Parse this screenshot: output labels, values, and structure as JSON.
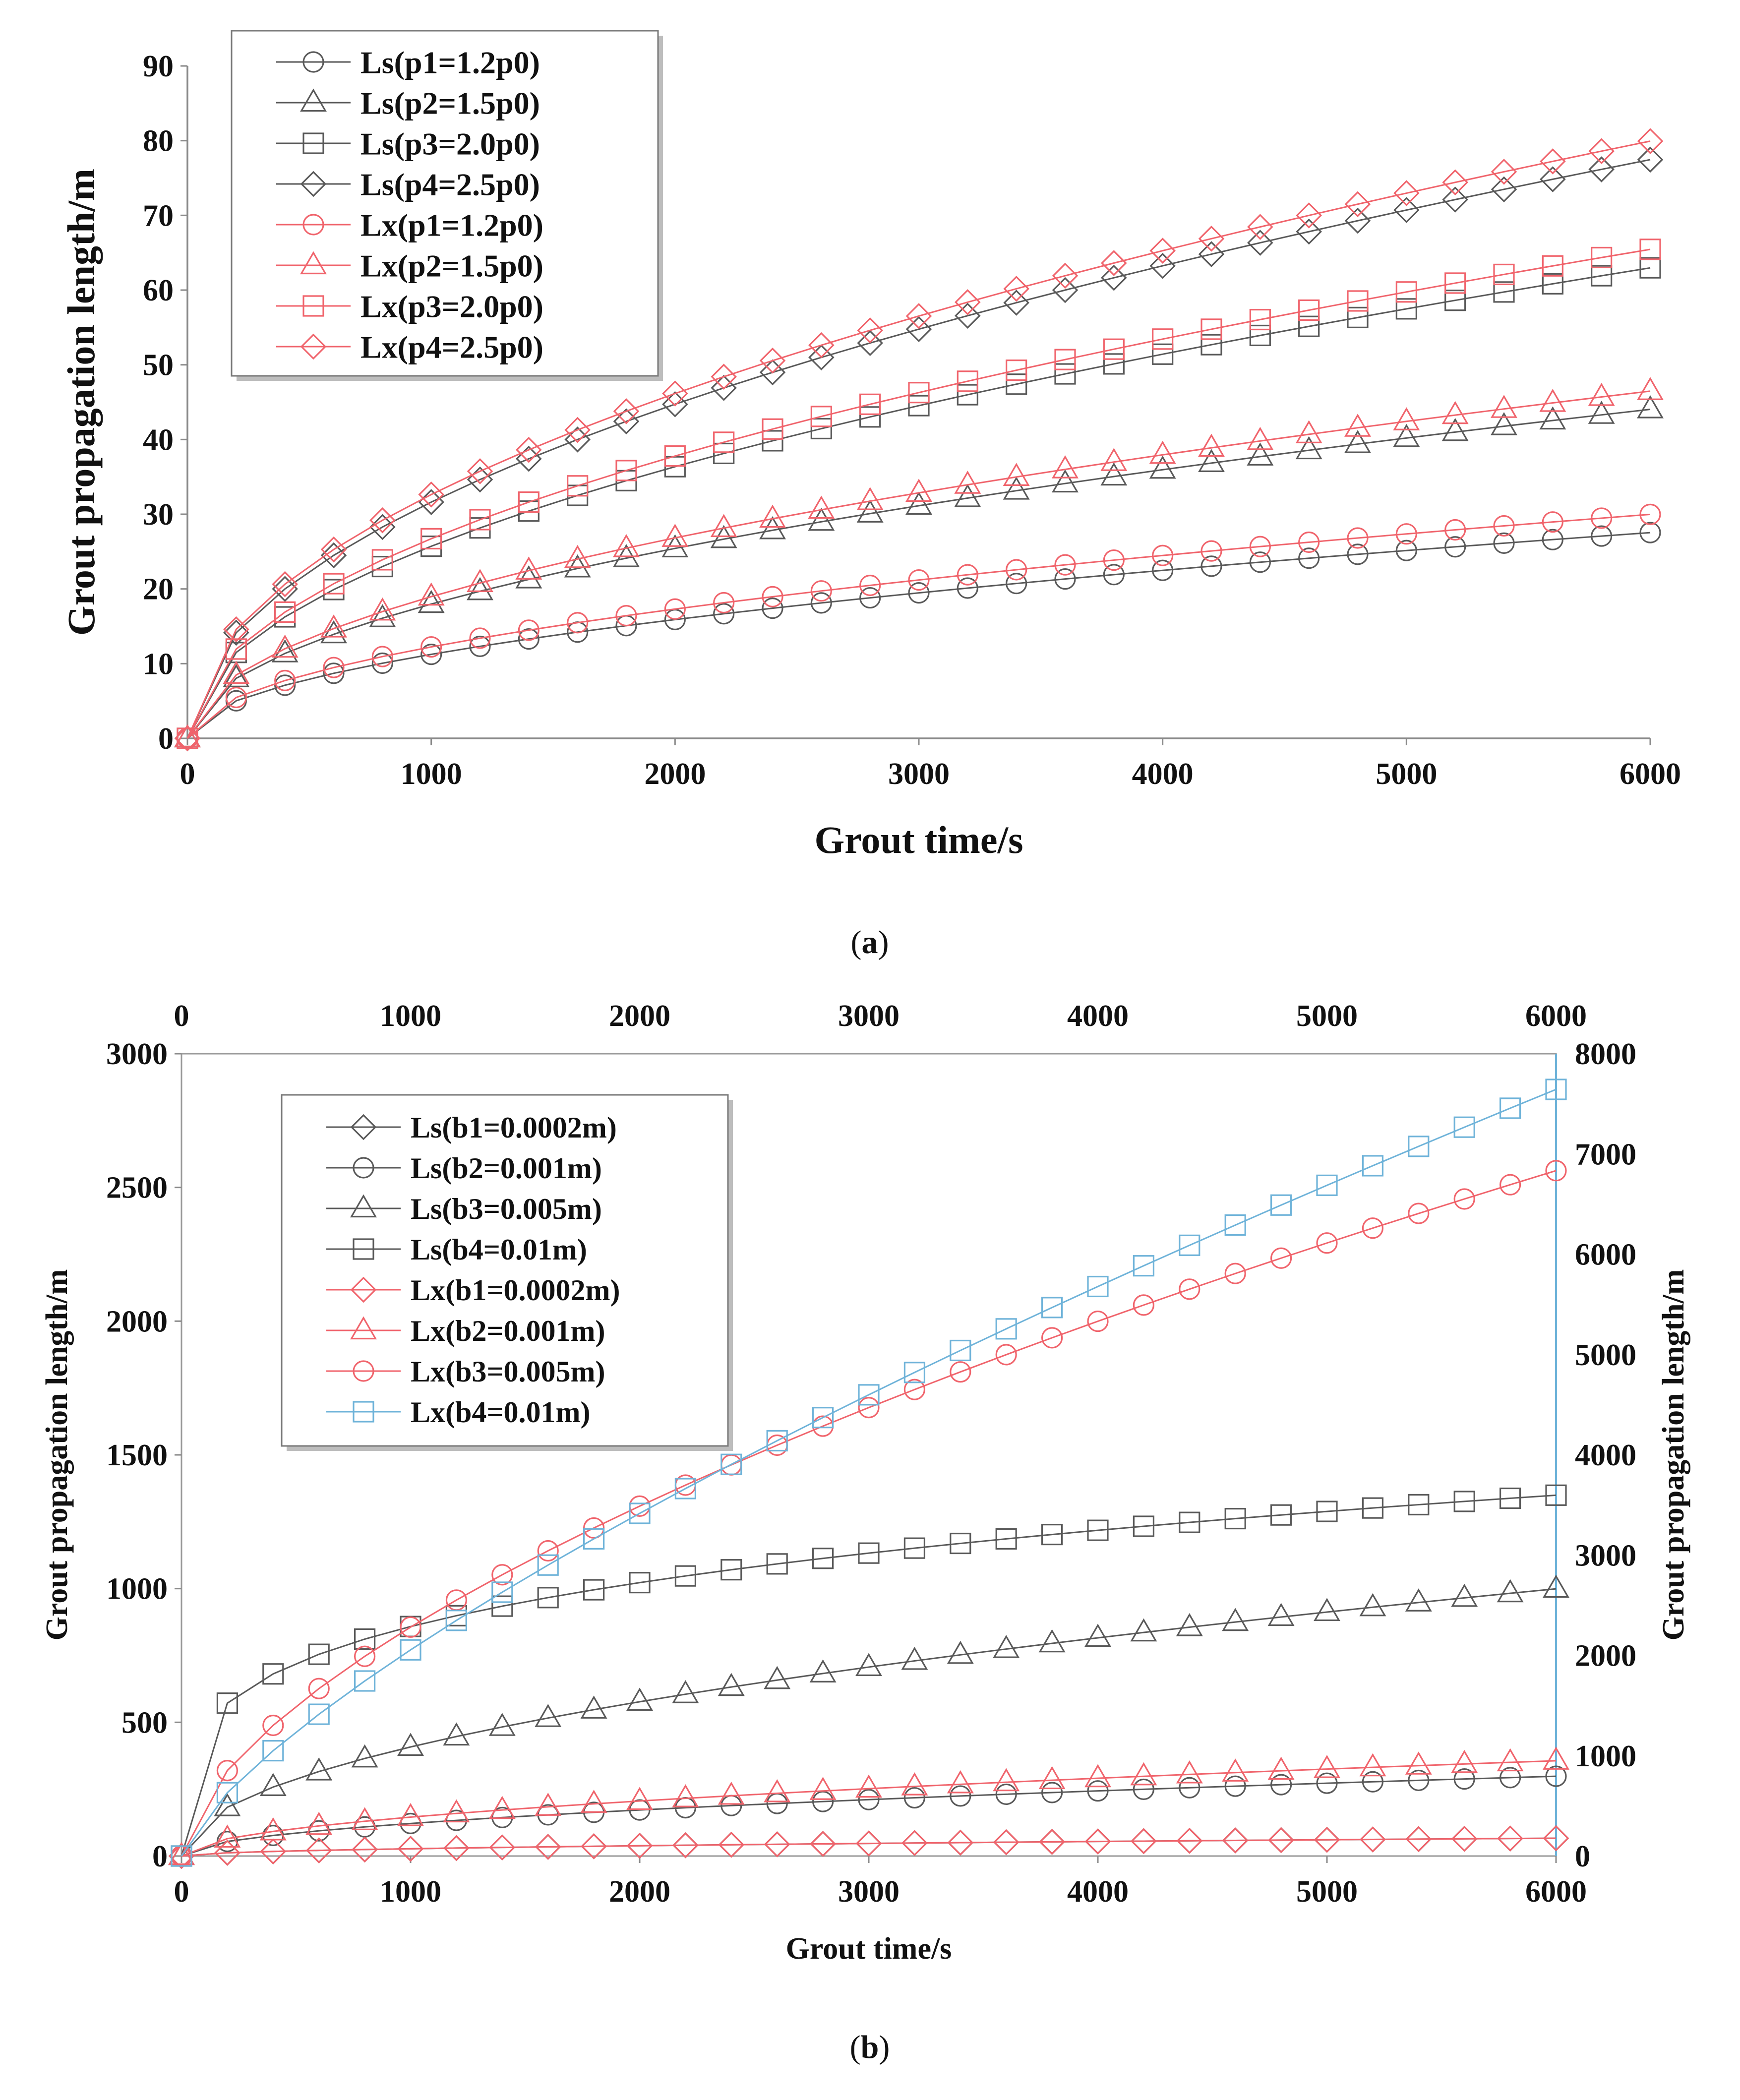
{
  "chart_data": [
    {
      "type": "line",
      "caption_letter": "a",
      "xlabel": "Grout time/s",
      "ylabel": "Grout propagation length/m",
      "xlim": [
        0,
        6000
      ],
      "ylim": [
        0,
        90
      ],
      "xticks": [
        0,
        1000,
        2000,
        3000,
        4000,
        5000,
        6000
      ],
      "yticks": [
        0,
        10,
        20,
        30,
        40,
        50,
        60,
        70,
        80,
        90
      ],
      "legend_position": "top-left",
      "series": [
        {
          "name": "Ls(p1=1.2p0)",
          "color": "#595959",
          "marker": "circle",
          "a": 0.3555,
          "k": 0.5
        },
        {
          "name": "Ls(p2=1.5p0)",
          "color": "#595959",
          "marker": "triangle",
          "a": 0.5685,
          "k": 0.5
        },
        {
          "name": "Ls(p3=2.0p0)",
          "color": "#595959",
          "marker": "square",
          "a": 0.813,
          "k": 0.5
        },
        {
          "name": "Ls(p4=2.5p0)",
          "color": "#595959",
          "marker": "diamond",
          "a": 1.0,
          "k": 0.5
        },
        {
          "name": "Lx(p1=1.2p0)",
          "color": "#f0646c",
          "marker": "circle",
          "a": 0.387,
          "k": 0.5
        },
        {
          "name": "Lx(p2=1.5p0)",
          "color": "#f0646c",
          "marker": "triangle",
          "a": 0.6,
          "k": 0.5
        },
        {
          "name": "Lx(p3=2.0p0)",
          "color": "#f0646c",
          "marker": "square",
          "a": 0.845,
          "k": 0.5
        },
        {
          "name": "Lx(p4=2.5p0)",
          "color": "#f0646c",
          "marker": "diamond",
          "a": 1.032,
          "k": 0.5
        }
      ],
      "x": [
        0,
        200,
        400,
        600,
        800,
        1000,
        1200,
        1400,
        1600,
        1800,
        2000,
        2200,
        2400,
        2600,
        2800,
        3000,
        3200,
        3400,
        3600,
        3800,
        4000,
        4200,
        4400,
        4600,
        4800,
        5000,
        5200,
        5400,
        5600,
        5800,
        6000
      ]
    },
    {
      "type": "line",
      "caption_letter": "b",
      "xlabel": "Grout time/s",
      "ylabel": "Grout propagation length/m",
      "y2label": "Grout propagation length/m",
      "xlim": [
        0,
        6000
      ],
      "ylim": [
        0,
        3000
      ],
      "y2lim": [
        0,
        8000
      ],
      "xticks": [
        0,
        1000,
        2000,
        3000,
        4000,
        5000,
        6000
      ],
      "yticks": [
        0,
        500,
        1000,
        1500,
        2000,
        2500,
        3000
      ],
      "y2ticks": [
        0,
        1000,
        2000,
        3000,
        4000,
        5000,
        6000,
        7000,
        8000
      ],
      "legend_position": "top-left",
      "series": [
        {
          "name": "Ls(b1=0.0002m)",
          "color": "#595959",
          "marker": "diamond",
          "axis": "left",
          "a": 0.86,
          "k": 0.5
        },
        {
          "name": "Ls(b2=0.001m)",
          "color": "#595959",
          "marker": "circle",
          "axis": "left",
          "a": 3.85,
          "k": 0.5
        },
        {
          "name": "Ls(b3=0.005m)",
          "color": "#595959",
          "marker": "triangle",
          "axis": "left",
          "a": 12.9,
          "k": 0.5
        },
        {
          "name": "Ls(b4=0.01m)",
          "color": "#595959",
          "marker": "square",
          "axis": "left",
          "a": 150,
          "k": 0.2525
        },
        {
          "name": "Lx(b1=0.0002m)",
          "color": "#f0646c",
          "marker": "diamond",
          "axis": "left",
          "a": 0.86,
          "k": 0.5
        },
        {
          "name": "Lx(b2=0.001m)",
          "color": "#f0646c",
          "marker": "triangle",
          "axis": "left",
          "a": 4.6,
          "k": 0.5
        },
        {
          "name": "Lx(b3=0.005m)",
          "color": "#f0646c",
          "marker": "circle",
          "axis": "right",
          "a": 33.3,
          "k": 0.612
        },
        {
          "name": "Lx(b4=0.01m)",
          "color": "#6fb3d9",
          "marker": "square",
          "axis": "right",
          "a": 13.0,
          "k": 0.733
        }
      ],
      "x": [
        0,
        200,
        400,
        600,
        800,
        1000,
        1200,
        1400,
        1600,
        1800,
        2000,
        2200,
        2400,
        2600,
        2800,
        3000,
        3200,
        3400,
        3600,
        3800,
        4000,
        4200,
        4400,
        4600,
        4800,
        5000,
        5200,
        5400,
        5600,
        5800,
        6000
      ]
    }
  ]
}
